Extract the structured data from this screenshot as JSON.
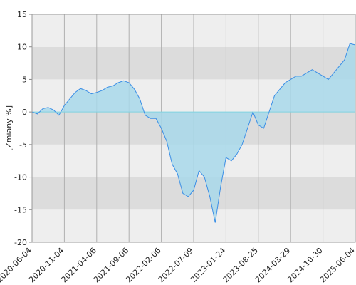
{
  "chart_data": {
    "type": "area",
    "y_label": "[Zmiany %]",
    "categories": [
      "2020-06-04",
      null,
      null,
      null,
      null,
      null,
      "2020-11-04",
      null,
      null,
      null,
      null,
      null,
      "2021-04-06",
      null,
      null,
      null,
      null,
      null,
      "2021-09-06",
      null,
      null,
      null,
      null,
      null,
      "2022-02-06",
      null,
      null,
      null,
      null,
      null,
      "2022-07-09",
      null,
      null,
      null,
      null,
      null,
      "2023-01-24",
      null,
      null,
      null,
      null,
      null,
      "2023-08-25",
      null,
      null,
      null,
      null,
      null,
      "2024-03-29",
      null,
      null,
      null,
      null,
      null,
      "2024-10-30",
      null,
      null,
      null,
      null,
      null,
      "2025-06-04"
    ],
    "values": [
      0,
      -0.3,
      0.5,
      0.7,
      0.3,
      -0.5,
      1.0,
      2.0,
      3.0,
      3.6,
      3.3,
      2.8,
      3.0,
      3.3,
      3.8,
      4.0,
      4.5,
      4.8,
      4.5,
      3.5,
      2.0,
      -0.5,
      -1.0,
      -1.0,
      -2.5,
      -4.5,
      -8,
      -9.5,
      -12.5,
      -13,
      -12,
      -9,
      -10,
      -13,
      -17,
      -11.5,
      -7,
      -7.5,
      -6.5,
      -5,
      -2.5,
      0,
      -2,
      -2.5,
      0,
      2.5,
      3.5,
      4.5,
      5.0,
      5.5,
      5.5,
      6.0,
      6.5,
      6.0,
      5.5,
      5.0,
      6.0,
      7.0,
      8.0,
      10.5,
      10.3
    ],
    "line_color": "#3a8ee6",
    "fill_color": "#a8d8ea",
    "ylim": [
      -20,
      15
    ],
    "yticks": [
      -20,
      -15,
      -10,
      -5,
      0,
      5,
      10,
      15
    ]
  }
}
